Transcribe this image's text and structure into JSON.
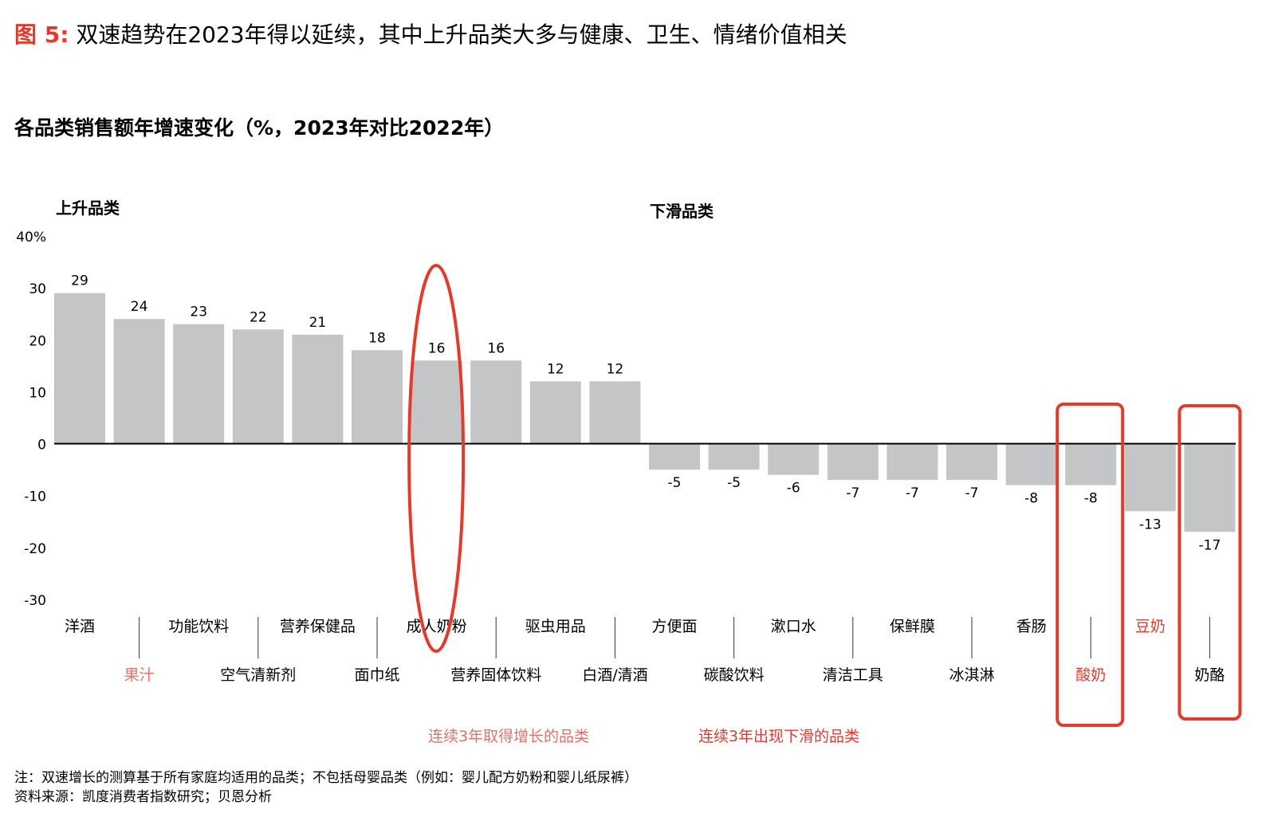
{
  "figure": {
    "label": "图 5:",
    "title": "双速趋势在2023年得以延续，其中上升品类大多与健康、卫生、情绪价值相关"
  },
  "footer": {
    "note": "注：双速增长的测算基于所有家庭均适用的品类；不包括母婴品类（例如：婴儿配方奶粉和婴儿纸尿裤）",
    "source": "资料来源：凯度消费者指数研究；贝恩分析"
  },
  "colors": {
    "bar": "#c4c5c7",
    "highlight": "#e33a2c",
    "pink_label": "#e4706a",
    "axis": "#000000"
  },
  "chart_data": {
    "type": "bar",
    "title": "各品类销售额年增速变化（%，2023年对比2022年）",
    "ylim": [
      -30,
      40
    ],
    "yticks": [
      40,
      30,
      20,
      10,
      0,
      -10,
      -20,
      -30
    ],
    "ytick_labels": [
      "40%",
      "30",
      "20",
      "10",
      "0",
      "-10",
      "-20",
      "-30"
    ],
    "group_labels": {
      "rising": "上升品类",
      "declining": "下滑品类"
    },
    "categories": [
      "洋酒",
      "果汁",
      "功能饮料",
      "空气清新剂",
      "营养保健品",
      "面巾纸",
      "成人奶粉",
      "营养固体饮料",
      "驱虫用品",
      "白酒/清酒",
      "方便面",
      "碳酸饮料",
      "漱口水",
      "清洁工具",
      "保鲜膜",
      "冰淇淋",
      "香肠",
      "酸奶",
      "豆奶",
      "奶酪"
    ],
    "values": [
      29,
      24,
      23,
      22,
      21,
      18,
      16,
      16,
      12,
      12,
      -5,
      -5,
      -6,
      -7,
      -7,
      -7,
      -8,
      -8,
      -13,
      -17
    ],
    "highlighted_categories": [
      "果汁",
      "酸奶",
      "豆奶"
    ],
    "circled_categories": [
      "成人奶粉",
      "酸奶",
      "奶酪"
    ],
    "legend": [
      {
        "label": "连续3年取得增长的品类",
        "color": "#e4706a"
      },
      {
        "label": "连续3年出现下滑的品类",
        "color": "#e33a2c"
      }
    ]
  }
}
